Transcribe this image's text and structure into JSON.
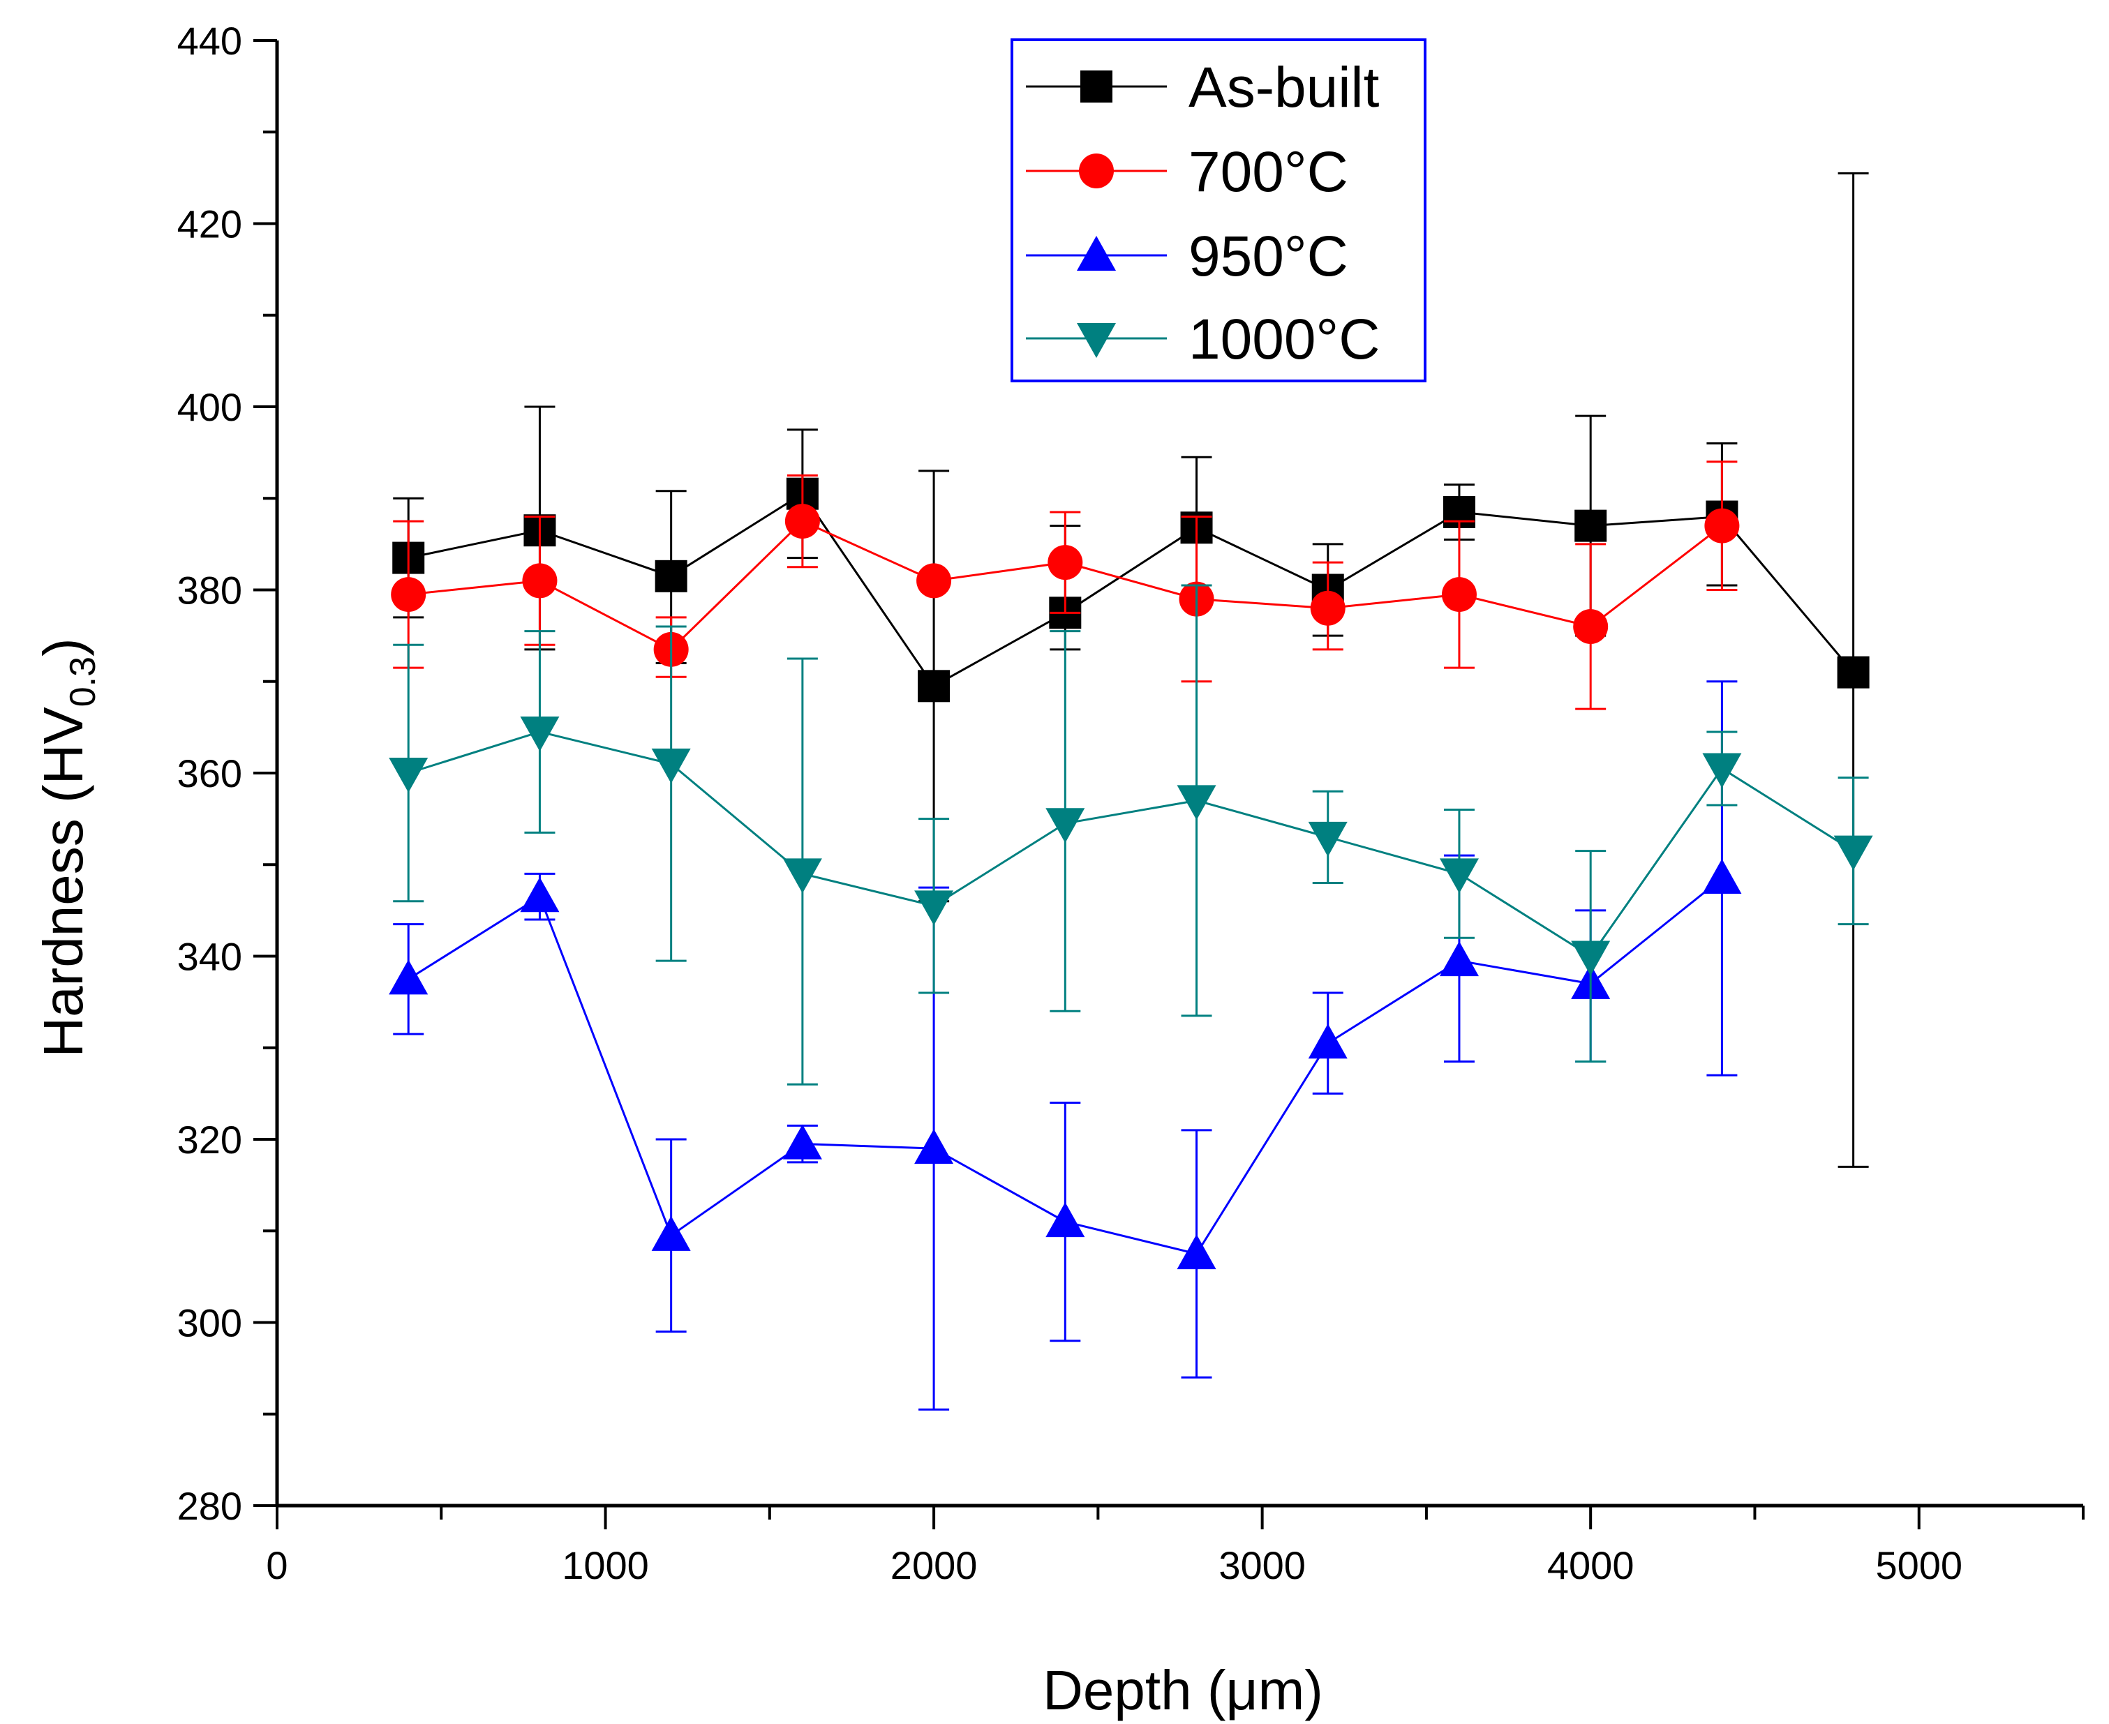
{
  "chart_data": {
    "type": "line",
    "title": "",
    "xlabel": "Depth (μm)",
    "ylabel": {
      "main": "Hardness (HV",
      "sub": "0.3",
      "close": ")"
    },
    "xlim": [
      0,
      5500
    ],
    "ylim": [
      280,
      440
    ],
    "xticks": [
      0,
      1000,
      2000,
      3000,
      4000,
      5000
    ],
    "yticks": [
      280,
      300,
      320,
      340,
      360,
      380,
      400,
      420,
      440
    ],
    "legend_position": "top-center",
    "series": [
      {
        "name": "As-built",
        "color": "#000000",
        "marker": "square",
        "x": [
          400,
          800,
          1200,
          1600,
          2000,
          2400,
          2800,
          3200,
          3600,
          4000,
          4400,
          4800
        ],
        "y": [
          383.5,
          386.5,
          381.5,
          390.5,
          369.5,
          377.5,
          386.8,
          380.0,
          388.5,
          387.0,
          388.0,
          371.0
        ],
        "err_hi": [
          390.0,
          400.0,
          390.8,
          397.5,
          393.0,
          387.0,
          394.5,
          385.0,
          391.5,
          399.0,
          396.0,
          425.5
        ],
        "err_lo": [
          377.0,
          373.5,
          372.0,
          383.5,
          346.0,
          373.5,
          379.0,
          375.0,
          385.5,
          375.0,
          380.5,
          317.0
        ]
      },
      {
        "name": "700°C",
        "color": "#ff0000",
        "marker": "circle",
        "x": [
          400,
          800,
          1200,
          1600,
          2000,
          2400,
          2800,
          3200,
          3600,
          4000,
          4400
        ],
        "y": [
          379.5,
          381.0,
          373.5,
          387.5,
          381.0,
          383.0,
          379.0,
          378.0,
          379.5,
          376.0,
          387.0
        ],
        "err_hi": [
          387.5,
          388.0,
          377.0,
          392.5,
          381.5,
          388.5,
          388.0,
          383.0,
          387.5,
          385.0,
          394.0
        ],
        "err_lo": [
          371.5,
          374.0,
          370.5,
          382.5,
          380.5,
          377.5,
          370.0,
          373.5,
          371.5,
          367.0,
          380.0
        ]
      },
      {
        "name": "950°C",
        "color": "#0000ff",
        "marker": "triangle-up",
        "x": [
          400,
          800,
          1200,
          1600,
          2000,
          2400,
          2800,
          3200,
          3600,
          4000,
          4400
        ],
        "y": [
          337.5,
          346.5,
          309.5,
          319.5,
          319.0,
          311.0,
          307.5,
          330.5,
          339.5,
          337.0,
          348.5
        ],
        "err_hi": [
          343.5,
          349.0,
          320.0,
          321.5,
          347.5,
          324.0,
          321.0,
          336.0,
          351.0,
          345.0,
          370.0
        ],
        "err_lo": [
          331.5,
          344.0,
          299.0,
          317.5,
          290.5,
          298.0,
          294.0,
          325.0,
          328.5,
          328.5,
          327.0
        ]
      },
      {
        "name": "1000°C",
        "color": "#008080",
        "marker": "triangle-down",
        "x": [
          400,
          800,
          1200,
          1600,
          2000,
          2400,
          2800,
          3200,
          3600,
          4000,
          4400,
          4800
        ],
        "y": [
          360.0,
          364.5,
          361.0,
          349.0,
          345.5,
          354.5,
          357.0,
          353.0,
          349.0,
          340.0,
          360.5,
          351.5
        ],
        "err_hi": [
          374.0,
          375.5,
          376.0,
          372.5,
          355.0,
          375.5,
          380.5,
          358.0,
          356.0,
          351.5,
          364.5,
          359.5
        ],
        "err_lo": [
          346.0,
          353.5,
          339.5,
          326.0,
          336.0,
          334.0,
          333.5,
          348.0,
          342.0,
          328.5,
          356.5,
          343.5
        ]
      }
    ]
  }
}
